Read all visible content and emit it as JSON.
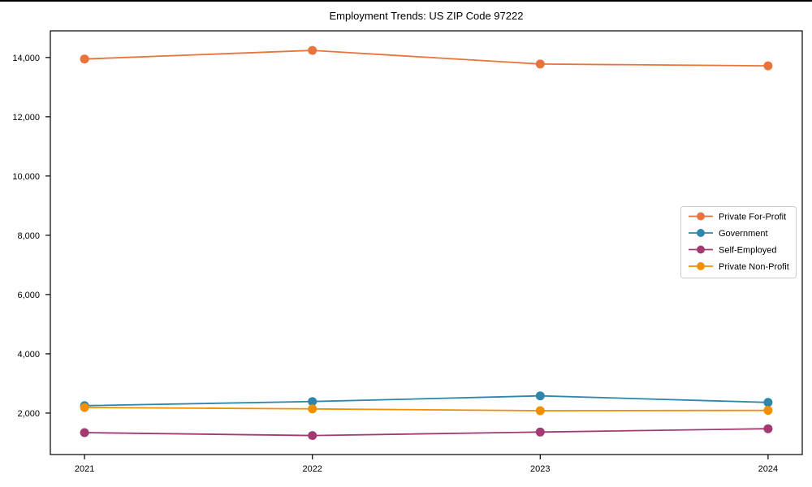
{
  "chart_data": {
    "type": "line",
    "title": "Employment Trends: US ZIP Code 97222",
    "x": [
      2021,
      2022,
      2023,
      2024
    ],
    "xtick_labels": [
      "2021",
      "2022",
      "2023",
      "2024"
    ],
    "series": [
      {
        "name": "Private For-Profit",
        "color": "#E8743B",
        "values": [
          13950,
          14240,
          13780,
          13720
        ]
      },
      {
        "name": "Government",
        "color": "#2E86AB",
        "values": [
          2250,
          2390,
          2580,
          2360
        ]
      },
      {
        "name": "Self-Employed",
        "color": "#A23B72",
        "values": [
          1340,
          1240,
          1360,
          1470
        ]
      },
      {
        "name": "Private Non-Profit",
        "color": "#F18F01",
        "values": [
          2190,
          2140,
          2080,
          2090
        ]
      }
    ],
    "yticks": [
      2000,
      4000,
      6000,
      8000,
      10000,
      12000,
      14000
    ],
    "ytick_labels": [
      "2,000",
      "4,000",
      "6,000",
      "8,000",
      "10,000",
      "12,000",
      "14,000"
    ],
    "xlim": [
      2020.85,
      2024.15
    ],
    "ylim": [
      600,
      14900
    ],
    "grid": false,
    "legend_position": "center right",
    "marker": "circle",
    "axis_color": "#000000",
    "legend_border_color": "#cccccc"
  }
}
